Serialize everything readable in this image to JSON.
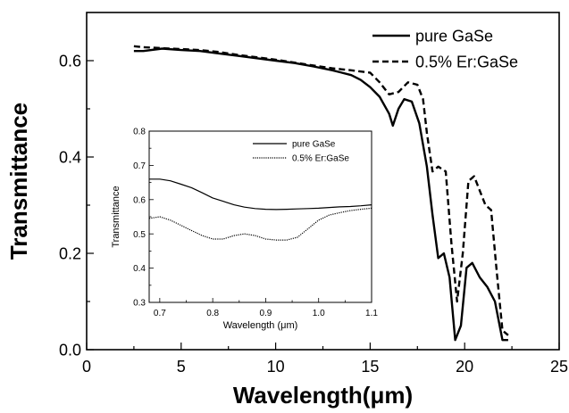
{
  "chart_data": [
    {
      "type": "line",
      "title": "",
      "xlabel": "Wavelength(μm)",
      "ylabel": "Transmittance",
      "xlim": [
        0,
        25
      ],
      "ylim": [
        0.0,
        0.7
      ],
      "xticks": [
        "0",
        "5",
        "10",
        "15",
        "20",
        "25"
      ],
      "yticks": [
        "0.0",
        "0.2",
        "0.4",
        "0.6"
      ],
      "grid": false,
      "legend_position": "top-right",
      "series": [
        {
          "name": "pure GaSe",
          "line_style": "solid",
          "x": [
            2.5,
            3,
            4,
            5,
            6,
            7,
            8,
            9,
            10,
            11,
            12,
            13,
            13.5,
            14,
            14.5,
            15,
            15.5,
            16,
            16.2,
            16.5,
            16.8,
            17.2,
            17.6,
            18,
            18.3,
            18.6,
            18.9,
            19.2,
            19.5,
            19.8,
            20.1,
            20.4,
            20.8,
            21.2,
            21.6,
            22,
            22.3
          ],
          "y": [
            0.62,
            0.62,
            0.625,
            0.622,
            0.62,
            0.615,
            0.61,
            0.605,
            0.6,
            0.595,
            0.588,
            0.58,
            0.575,
            0.57,
            0.56,
            0.545,
            0.525,
            0.49,
            0.465,
            0.5,
            0.52,
            0.515,
            0.47,
            0.38,
            0.28,
            0.19,
            0.2,
            0.15,
            0.02,
            0.05,
            0.17,
            0.18,
            0.15,
            0.13,
            0.1,
            0.02,
            0.02
          ]
        },
        {
          "name": "0.5% Er:GaSe",
          "line_style": "dashed",
          "x": [
            2.5,
            3,
            4,
            5,
            6,
            7,
            8,
            9,
            10,
            11,
            12,
            13,
            14,
            15,
            15.5,
            16,
            16.5,
            17,
            17.5,
            17.8,
            18,
            18.3,
            18.6,
            19,
            19.3,
            19.6,
            19.9,
            20.2,
            20.5,
            20.8,
            21.1,
            21.4,
            21.7,
            22,
            22.3
          ],
          "y": [
            0.63,
            0.628,
            0.626,
            0.624,
            0.622,
            0.618,
            0.612,
            0.607,
            0.602,
            0.596,
            0.59,
            0.584,
            0.58,
            0.575,
            0.555,
            0.53,
            0.535,
            0.555,
            0.55,
            0.52,
            0.45,
            0.37,
            0.38,
            0.37,
            0.22,
            0.1,
            0.2,
            0.35,
            0.36,
            0.33,
            0.3,
            0.29,
            0.16,
            0.04,
            0.03
          ]
        }
      ]
    },
    {
      "type": "line",
      "title": "",
      "xlabel": "Wavelength (μm)",
      "ylabel": "Transmittance",
      "xlim": [
        0.68,
        1.1
      ],
      "ylim": [
        0.3,
        0.8
      ],
      "xticks": [
        "0.7",
        "0.8",
        "0.9",
        "1.0",
        "1.1"
      ],
      "yticks": [
        "0.3",
        "0.4",
        "0.5",
        "0.6",
        "0.7",
        "0.8"
      ],
      "grid": false,
      "legend_position": "top-right",
      "series": [
        {
          "name": "pure GaSe",
          "line_style": "solid",
          "x": [
            0.68,
            0.7,
            0.72,
            0.74,
            0.76,
            0.78,
            0.8,
            0.82,
            0.84,
            0.86,
            0.88,
            0.9,
            0.92,
            0.94,
            0.96,
            0.98,
            1.0,
            1.02,
            1.04,
            1.06,
            1.08,
            1.1
          ],
          "y": [
            0.66,
            0.66,
            0.655,
            0.645,
            0.635,
            0.62,
            0.605,
            0.595,
            0.585,
            0.578,
            0.574,
            0.572,
            0.571,
            0.572,
            0.573,
            0.574,
            0.575,
            0.577,
            0.579,
            0.58,
            0.582,
            0.585
          ]
        },
        {
          "name": "0.5% Er:GaSe",
          "line_style": "dotted",
          "x": [
            0.68,
            0.7,
            0.72,
            0.74,
            0.76,
            0.78,
            0.8,
            0.82,
            0.84,
            0.86,
            0.88,
            0.9,
            0.92,
            0.94,
            0.96,
            0.98,
            1.0,
            1.02,
            1.04,
            1.06,
            1.08,
            1.1
          ],
          "y": [
            0.545,
            0.55,
            0.54,
            0.525,
            0.51,
            0.495,
            0.485,
            0.485,
            0.495,
            0.5,
            0.495,
            0.485,
            0.482,
            0.482,
            0.49,
            0.515,
            0.54,
            0.555,
            0.562,
            0.568,
            0.572,
            0.575
          ]
        }
      ]
    }
  ]
}
